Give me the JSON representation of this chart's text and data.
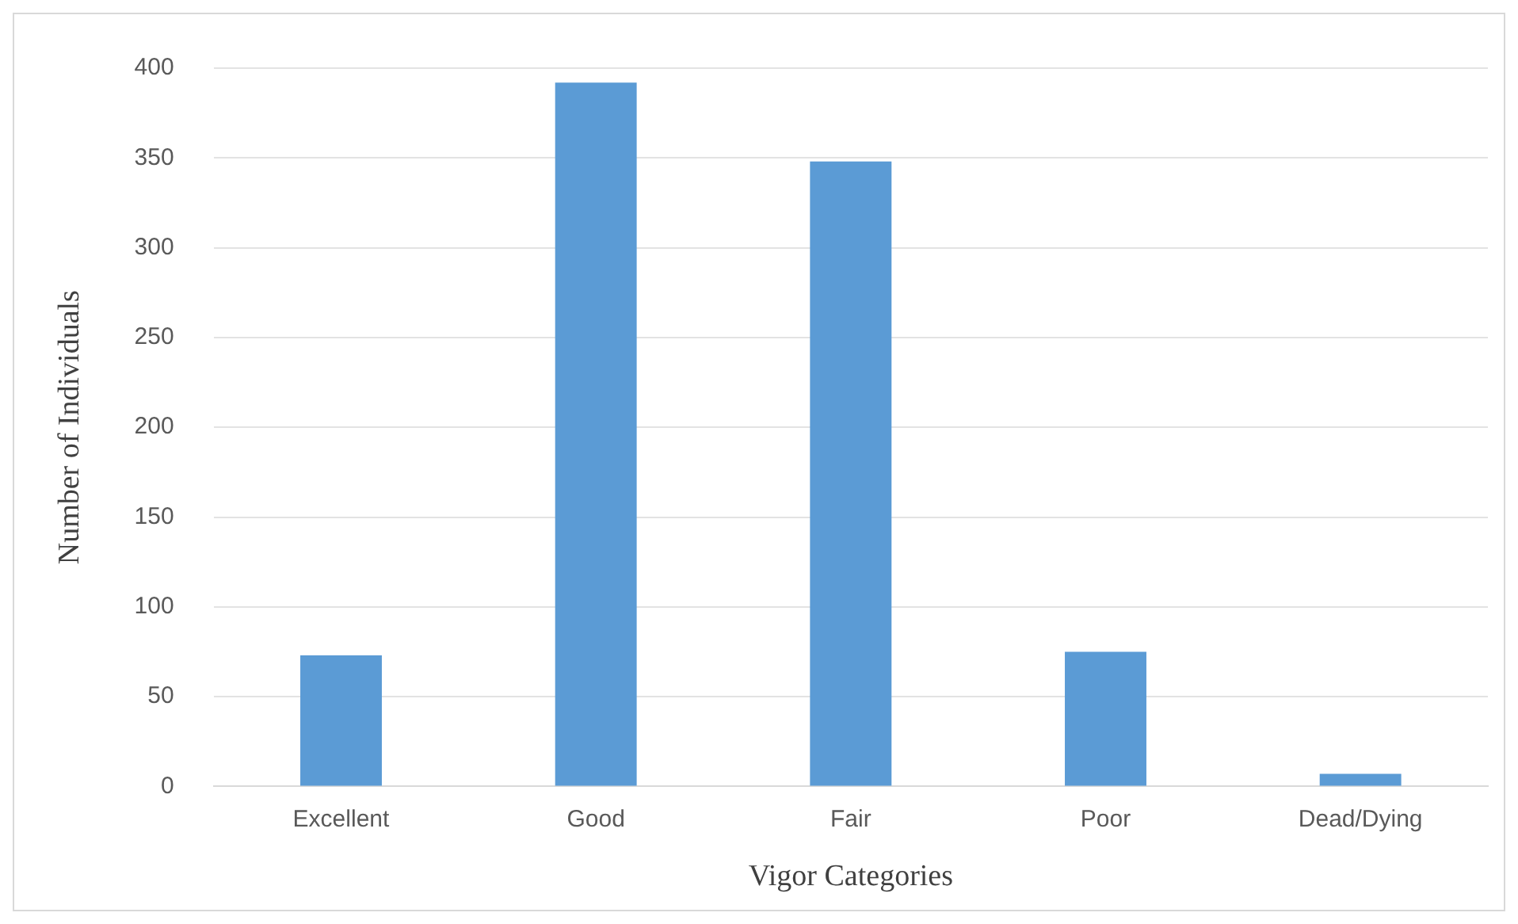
{
  "chart_data": {
    "type": "bar",
    "xlabel": "Vigor Categories",
    "ylabel": "Number of Individuals",
    "categories": [
      "Excellent",
      "Good",
      "Fair",
      "Poor",
      "Dead/Dying"
    ],
    "values": [
      73,
      392,
      348,
      75,
      7
    ],
    "color": "#5b9bd5",
    "ylim": [
      0,
      400
    ],
    "yticks": [
      0,
      50,
      100,
      150,
      200,
      250,
      300,
      350,
      400
    ],
    "grid": "y",
    "legend": false
  }
}
